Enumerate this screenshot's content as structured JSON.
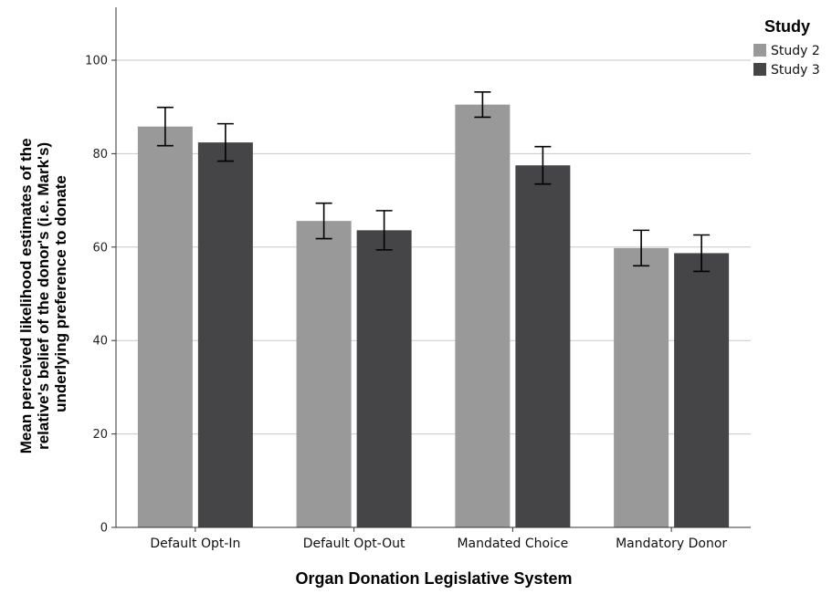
{
  "chart_data": {
    "type": "bar",
    "categories": [
      "Default Opt-In",
      "Default Opt-Out",
      "Mandated Choice",
      "Mandatory Donor"
    ],
    "series": [
      {
        "name": "Study 2",
        "color": "#999999",
        "values": [
          85.8,
          65.6,
          90.5,
          59.8
        ],
        "error_low": [
          81.7,
          61.8,
          87.8,
          56.0
        ],
        "error_high": [
          89.9,
          69.4,
          93.2,
          63.6
        ]
      },
      {
        "name": "Study 3",
        "color": "#454547",
        "values": [
          82.4,
          63.6,
          77.5,
          58.7
        ],
        "error_low": [
          78.4,
          59.4,
          73.5,
          54.8
        ],
        "error_high": [
          86.4,
          67.8,
          81.5,
          62.6
        ]
      }
    ],
    "xlabel": "Organ Donation Legislative System",
    "ylabel_lines": [
      "Mean perceived likelihood estimates of the",
      "relative's belief of the donor's (i.e. Mark's)",
      "underlying preference to donate"
    ],
    "ylim": [
      0,
      112
    ],
    "yticks": [
      0,
      20,
      40,
      60,
      80,
      100
    ],
    "legend_title": "Study",
    "legend_position": "top-right",
    "grid": true
  }
}
